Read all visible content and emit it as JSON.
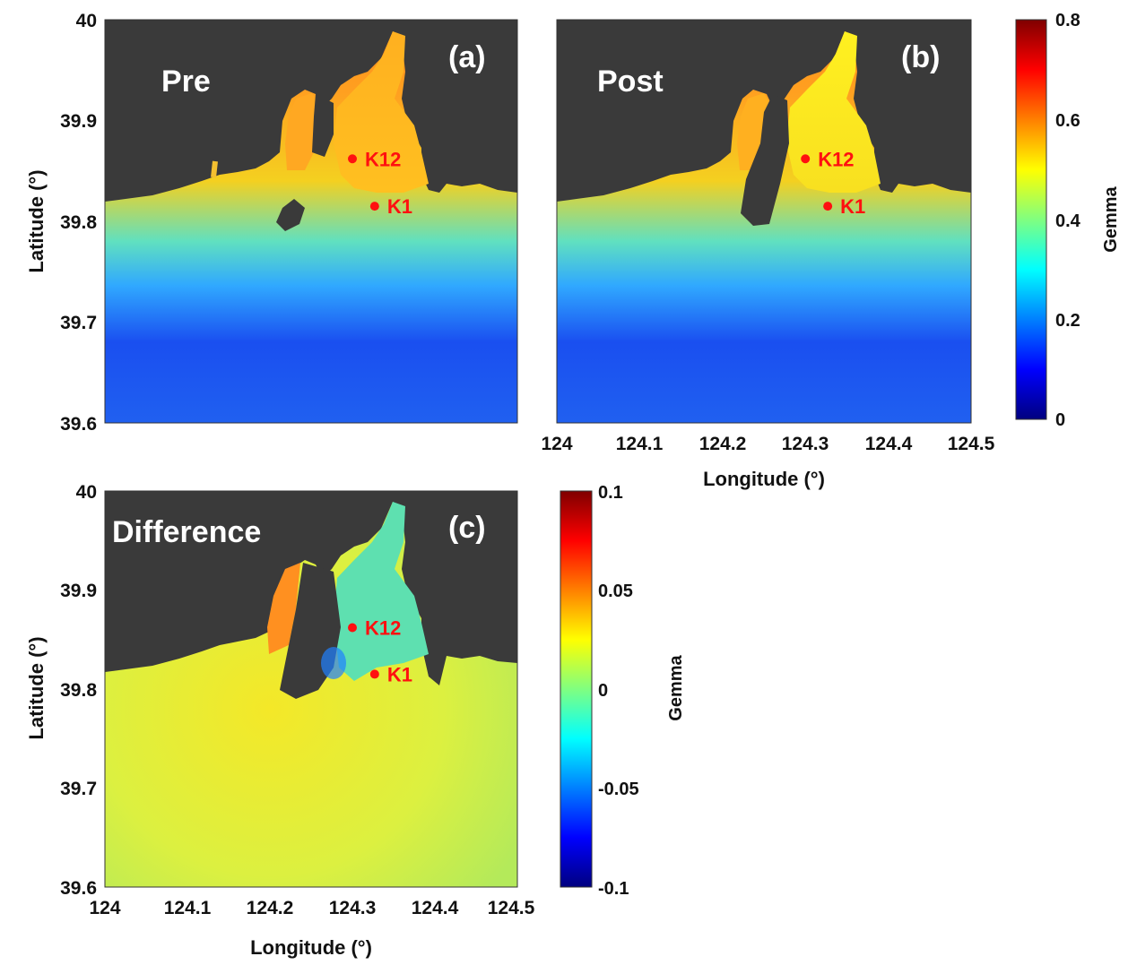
{
  "panels": [
    {
      "id": "a",
      "tag": "(a)",
      "title": "Pre"
    },
    {
      "id": "b",
      "tag": "(b)",
      "title": "Post"
    },
    {
      "id": "c",
      "tag": "(c)",
      "title": "Difference"
    }
  ],
  "stations": [
    {
      "name": "K12",
      "lon": 124.3,
      "lat": 39.862
    },
    {
      "name": "K1",
      "lon": 124.327,
      "lat": 39.815
    }
  ],
  "axes": {
    "xlabel": "Longitude (°)",
    "ylabel": "Latitude (°)",
    "xticks": [
      "124",
      "124.1",
      "124.2",
      "124.3",
      "124.4",
      "124.5"
    ],
    "yticks": [
      "40",
      "39.9",
      "39.8",
      "39.7",
      "39.6"
    ],
    "xlim": [
      124,
      124.5
    ],
    "ylim": [
      39.6,
      40
    ]
  },
  "colorbar_top": {
    "label": "Gemma",
    "ticks": [
      "0.8",
      "0.6",
      "0.4",
      "0.2",
      "0"
    ],
    "range": [
      0,
      0.8
    ],
    "colormap": "jet"
  },
  "colorbar_bottom": {
    "label": "Gemma",
    "ticks": [
      "0.1",
      "0.05",
      "0",
      "-0.05",
      "-0.1"
    ],
    "range": [
      -0.1,
      0.1
    ],
    "colormap": "jet"
  },
  "colors": {
    "land": "#3a3a3a",
    "station": "#ff1010"
  }
}
